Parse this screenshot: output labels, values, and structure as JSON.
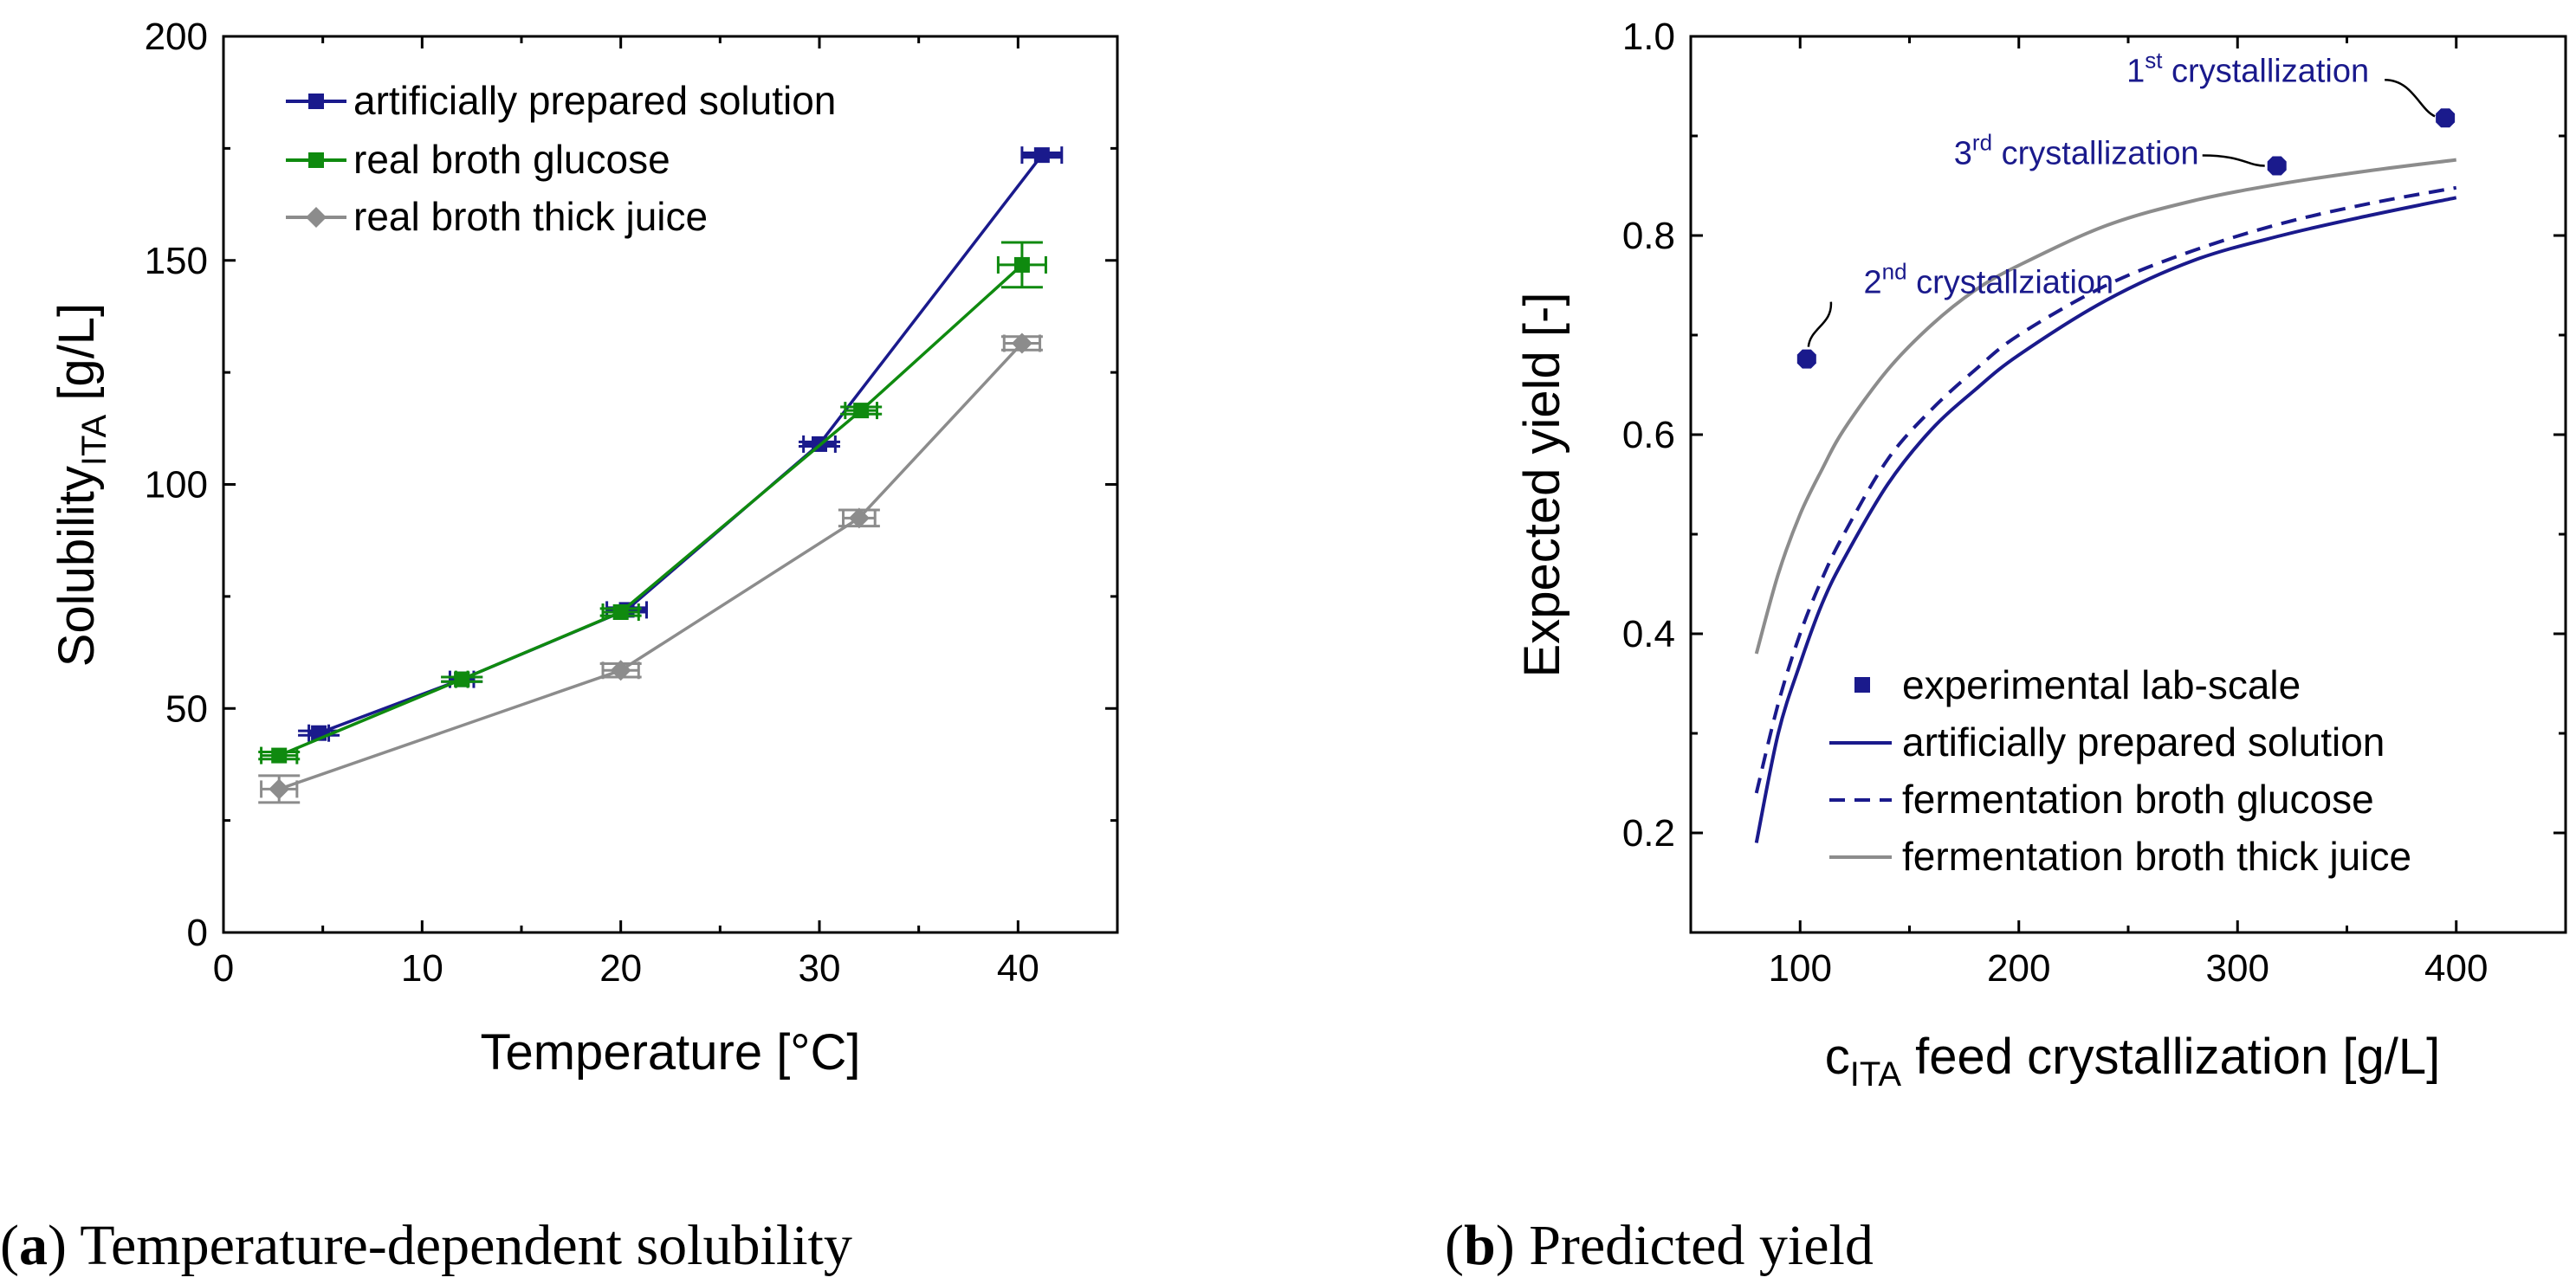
{
  "colors": {
    "navy": "#1a1a8c",
    "green": "#0f8a0f",
    "gray": "#8c8c8c",
    "annotation": "#1a1a8c"
  },
  "chart_data": [
    {
      "type": "line",
      "panel": "a",
      "caption": {
        "letter": "a",
        "text": "Temperature-dependent solubility"
      },
      "xlabel": "Temperature [°C]",
      "ylabel": {
        "main": "Solubility",
        "sub": "ITA",
        "unit": " [g/L]"
      },
      "xlim": [
        0,
        45
      ],
      "ylim": [
        0,
        200
      ],
      "xticks": [
        0,
        10,
        20,
        30,
        40
      ],
      "yticks": [
        0,
        50,
        100,
        150,
        200
      ],
      "grid": false,
      "legend_position": "top-left",
      "series": [
        {
          "name": "artificially prepared solution",
          "marker": "square",
          "color": "navy",
          "x": [
            4.8,
            12.0,
            20.3,
            30.0,
            41.2
          ],
          "y": [
            44.5,
            56.5,
            72.0,
            109.0,
            173.5
          ],
          "xerr": [
            0.5,
            0.6,
            1.0,
            0.8,
            1.0
          ],
          "yerr": [
            0.5,
            0.5,
            0.5,
            0.5,
            0.5
          ]
        },
        {
          "name": "real broth glucose",
          "marker": "square",
          "color": "green",
          "x": [
            2.8,
            12.0,
            20.0,
            32.1,
            40.2
          ],
          "y": [
            39.5,
            56.5,
            71.5,
            116.5,
            149.0
          ],
          "xerr": [
            0.9,
            0.3,
            0.9,
            0.8,
            1.2
          ],
          "yerr": [
            0.8,
            0.5,
            0.8,
            0.8,
            5.0
          ]
        },
        {
          "name": "real broth thick juice",
          "marker": "diamond",
          "color": "gray",
          "x": [
            2.8,
            20.0,
            32.0,
            40.2
          ],
          "y": [
            32.0,
            58.5,
            92.5,
            131.5
          ],
          "xerr": [
            0.9,
            0.9,
            0.8,
            0.9
          ],
          "yerr": [
            3.0,
            1.5,
            1.8,
            1.5
          ]
        }
      ]
    },
    {
      "type": "line",
      "panel": "b",
      "caption": {
        "letter": "b",
        "text": "Predicted yield"
      },
      "xlabel": {
        "prefix": "c",
        "sub": "ITA",
        "rest": " feed crystallization [g/L]"
      },
      "ylabel": "Expected yield [-]",
      "xlim": [
        50,
        450
      ],
      "ylim": [
        0.1,
        1.0
      ],
      "xticks": [
        100,
        200,
        300,
        400
      ],
      "yticks": [
        0.2,
        0.4,
        0.6,
        0.8,
        1.0
      ],
      "grid": false,
      "legend_position": "bottom-right",
      "series": [
        {
          "name": "experimental lab-scale",
          "kind": "scatter",
          "color": "navy",
          "x": [
            395,
            318,
            103
          ],
          "y": [
            0.918,
            0.87,
            0.676
          ]
        },
        {
          "name": "artificially prepared solution",
          "kind": "line",
          "dash": "solid",
          "color": "navy",
          "x": [
            80,
            90,
            100,
            110,
            120,
            140,
            160,
            180,
            200,
            240,
            280,
            320,
            360,
            400
          ],
          "y": [
            0.19,
            0.3,
            0.37,
            0.43,
            0.475,
            0.55,
            0.605,
            0.645,
            0.68,
            0.735,
            0.775,
            0.8,
            0.82,
            0.838
          ]
        },
        {
          "name": "fermentation broth glucose",
          "kind": "line",
          "dash": "dashed",
          "color": "navy",
          "x": [
            80,
            90,
            100,
            110,
            120,
            140,
            160,
            180,
            200,
            240,
            280,
            320,
            360,
            400
          ],
          "y": [
            0.24,
            0.33,
            0.4,
            0.455,
            0.5,
            0.575,
            0.625,
            0.665,
            0.7,
            0.75,
            0.785,
            0.812,
            0.832,
            0.848
          ]
        },
        {
          "name": "fermentation broth thick juice",
          "kind": "line",
          "dash": "solid",
          "color": "gray",
          "x": [
            80,
            90,
            100,
            110,
            120,
            140,
            160,
            180,
            200,
            240,
            280,
            320,
            360,
            400
          ],
          "y": [
            0.38,
            0.46,
            0.52,
            0.565,
            0.605,
            0.665,
            0.71,
            0.745,
            0.77,
            0.81,
            0.835,
            0.852,
            0.865,
            0.876
          ]
        }
      ],
      "annotations": [
        {
          "base": "1",
          "sup": "st",
          "rest": " crystallization",
          "x": 395,
          "y": 0.918
        },
        {
          "base": "3",
          "sup": "rd",
          "rest": " crystallization",
          "x": 318,
          "y": 0.87
        },
        {
          "base": "2",
          "sup": "nd",
          "rest": " crystallziation",
          "x": 103,
          "y": 0.676
        }
      ]
    }
  ]
}
